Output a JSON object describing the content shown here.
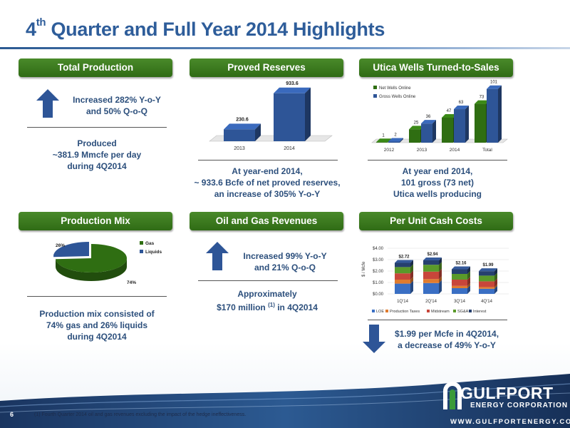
{
  "title": {
    "main": "4",
    "sup": "th",
    "rest": " Quarter and Full Year 2014 Highlights"
  },
  "headers": {
    "production": "Total Production",
    "reserves": "Proved Reserves",
    "utica": "Utica Wells Turned-to-Sales",
    "mix": "Production Mix",
    "revenues": "Oil and Gas Revenues",
    "costs": "Per Unit Cash Costs"
  },
  "production": {
    "line1": "Increased 282% Y-o-Y",
    "line2": "and 50% Q-o-Q",
    "produced1": "Produced",
    "produced2": "~381.9 Mmcfe per day",
    "produced3": "during 4Q2014"
  },
  "reserves": {
    "line1": "At year-end 2014,",
    "line2": "~ 933.6 Bcfe of net proved reserves,",
    "line3": "an increase of 305% Y-o-Y"
  },
  "utica": {
    "line1": "At year end 2014,",
    "line2": "101 gross (73 net)",
    "line3": "Utica wells producing"
  },
  "mix": {
    "line1": "Production mix consisted of",
    "line2": "74% gas and 26% liquids",
    "line3": "during 4Q2014"
  },
  "revenues": {
    "line1": "Increased 99% Y-o-Y",
    "line2": "and 21% Q-o-Q",
    "approx": "Approximately",
    "amount_pre": "$170 million ",
    "amount_sup": "(1)",
    "amount_post": " in 4Q2014"
  },
  "costs": {
    "line1": "$1.99 per Mcfe in 4Q2014,",
    "line2": "a decrease of 49% Y-o-Y"
  },
  "chart_data": [
    {
      "type": "bar",
      "categories": [
        "2013",
        "2014"
      ],
      "values": [
        230.6,
        933.6
      ],
      "ylim": [
        0,
        1000
      ],
      "color": "#2e5597"
    },
    {
      "type": "bar",
      "categories": [
        "2012",
        "2013",
        "2014",
        "Total"
      ],
      "series": [
        {
          "name": "Net Wells Online",
          "values": [
            1,
            25,
            47,
            73
          ],
          "color": "#2f6e12"
        },
        {
          "name": "Gross Wells Online",
          "values": [
            2,
            36,
            63,
            101
          ],
          "color": "#2e5597"
        }
      ],
      "ylim": [
        0,
        110
      ],
      "legend": "top-left"
    },
    {
      "type": "pie",
      "slices": [
        {
          "name": "Gas",
          "value": 74,
          "label": "74%",
          "color": "#2f6e12"
        },
        {
          "name": "Liquids",
          "value": 26,
          "label": "26%",
          "color": "#2e5597"
        }
      ],
      "legend": "right"
    },
    {
      "type": "bar",
      "stacked": true,
      "categories": [
        "1Q'14",
        "2Q'14",
        "3Q'14",
        "4Q'14"
      ],
      "totals": [
        "$2.72",
        "$2.94",
        "$2.16",
        "$1.99"
      ],
      "series": [
        {
          "name": "LOE",
          "values": [
            0.9,
            0.95,
            0.5,
            0.45
          ],
          "color": "#3a6fc4"
        },
        {
          "name": "Production Taxes",
          "values": [
            0.35,
            0.35,
            0.2,
            0.15
          ],
          "color": "#e07b2e"
        },
        {
          "name": "Midstream",
          "values": [
            0.55,
            0.65,
            0.55,
            0.5
          ],
          "color": "#c8463a"
        },
        {
          "name": "SG&A",
          "values": [
            0.55,
            0.6,
            0.5,
            0.5
          ],
          "color": "#5a9a2a"
        },
        {
          "name": "Interest",
          "values": [
            0.37,
            0.39,
            0.41,
            0.39
          ],
          "color": "#26406e"
        }
      ],
      "ylabel": "$ / Mcfe",
      "yticks": [
        "$0.00",
        "$1.00",
        "$2.00",
        "$3.00",
        "$4.00"
      ],
      "ylim": [
        0,
        4
      ],
      "legend": "bottom"
    }
  ],
  "footer": {
    "page": "6",
    "footnote": "(1)  Fourth Quarter 2014 oil and gas revenues excluding the impact of the hedge ineffectiveness.",
    "logo_name": "GULFPORT",
    "logo_sub": "ENERGY CORPORATION",
    "logo_url": "WWW.GULFPORTENERGY.COM"
  }
}
